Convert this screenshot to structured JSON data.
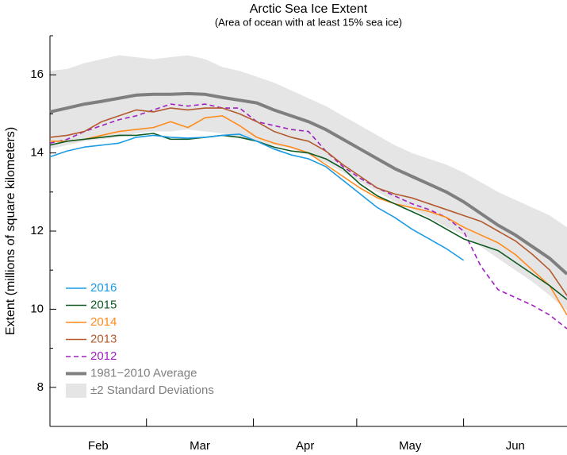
{
  "chart_data": {
    "type": "line",
    "title": "Arctic Sea Ice Extent",
    "subtitle": "(Area of ocean with at least 15% sea ice)",
    "y_label": "Extent (millions of square kilometers)",
    "xlim": [
      32,
      182
    ],
    "ylim": [
      7,
      17
    ],
    "yticks": [
      8,
      10,
      12,
      14,
      16
    ],
    "yticks_minor": [
      7,
      9,
      11,
      13,
      15,
      17
    ],
    "xtick_marks": [
      32,
      60,
      91,
      121,
      152
    ],
    "xticks": [
      {
        "value": 46,
        "label": "Feb"
      },
      {
        "value": 75.5,
        "label": "Mar"
      },
      {
        "value": 106,
        "label": "Apr"
      },
      {
        "value": 136.5,
        "label": "May"
      },
      {
        "value": 167,
        "label": "Jun"
      }
    ],
    "x": [
      32,
      37,
      42,
      47,
      52,
      57,
      62,
      67,
      72,
      77,
      82,
      87,
      92,
      97,
      102,
      107,
      112,
      117,
      122,
      127,
      132,
      137,
      142,
      147,
      152,
      157,
      162,
      167,
      172,
      177,
      182
    ],
    "band": {
      "name": "±2 Standard Deviations",
      "color": "#e5e5e5",
      "upper": [
        16.1,
        16.15,
        16.3,
        16.4,
        16.5,
        16.45,
        16.4,
        16.45,
        16.5,
        16.4,
        16.2,
        16.1,
        15.95,
        15.8,
        15.6,
        15.4,
        15.2,
        14.95,
        14.7,
        14.45,
        14.2,
        14.0,
        13.85,
        13.7,
        13.5,
        13.25,
        13.0,
        12.8,
        12.6,
        12.4,
        12.1
      ],
      "lower": [
        14.1,
        14.2,
        14.3,
        14.35,
        14.4,
        14.5,
        14.55,
        14.55,
        14.6,
        14.55,
        14.5,
        14.4,
        14.3,
        14.2,
        14.1,
        13.95,
        13.75,
        13.5,
        13.25,
        13.0,
        12.75,
        12.55,
        12.35,
        12.1,
        11.9,
        11.6,
        11.3,
        11.0,
        10.7,
        10.35,
        9.95
      ]
    },
    "series": [
      {
        "name": "2016",
        "color": "#1a9be6",
        "width": 1.6,
        "dash": false,
        "values": [
          13.9,
          14.05,
          14.15,
          14.2,
          14.25,
          14.4,
          14.45,
          14.4,
          14.38,
          14.4,
          14.45,
          14.48,
          14.3,
          14.1,
          13.95,
          13.85,
          13.65,
          13.3,
          12.95,
          12.6,
          12.35,
          12.05,
          11.8,
          11.55,
          11.25,
          null,
          null,
          null,
          null,
          null,
          null
        ]
      },
      {
        "name": "2015",
        "color": "#0d5a22",
        "width": 1.6,
        "dash": false,
        "values": [
          14.2,
          14.3,
          14.35,
          14.4,
          14.45,
          14.45,
          14.5,
          14.35,
          14.35,
          14.4,
          14.45,
          14.4,
          14.3,
          14.15,
          14.05,
          14.0,
          13.85,
          13.6,
          13.2,
          12.9,
          12.7,
          12.5,
          12.3,
          12.05,
          11.8,
          11.65,
          11.5,
          11.2,
          10.9,
          10.6,
          10.25
        ]
      },
      {
        "name": "2014",
        "color": "#ff8a1a",
        "width": 1.6,
        "dash": false,
        "values": [
          14.3,
          14.3,
          14.35,
          14.45,
          14.55,
          14.6,
          14.65,
          14.8,
          14.65,
          14.9,
          14.95,
          14.7,
          14.4,
          14.25,
          14.15,
          14.0,
          13.7,
          13.4,
          13.1,
          12.85,
          12.7,
          12.6,
          12.5,
          12.35,
          12.1,
          11.9,
          11.7,
          11.4,
          11.0,
          10.6,
          9.85
        ]
      },
      {
        "name": "2013",
        "color": "#b35a2e",
        "width": 1.6,
        "dash": false,
        "values": [
          14.4,
          14.45,
          14.55,
          14.8,
          14.95,
          15.1,
          15.05,
          15.15,
          15.1,
          15.15,
          15.15,
          15.0,
          14.8,
          14.55,
          14.4,
          14.3,
          14.05,
          13.7,
          13.4,
          13.1,
          12.95,
          12.85,
          12.7,
          12.55,
          12.4,
          12.25,
          12.0,
          11.75,
          11.4,
          11.0,
          10.35
        ]
      },
      {
        "name": "2012",
        "color": "#a020c0",
        "width": 1.6,
        "dash": true,
        "values": [
          14.25,
          14.35,
          14.55,
          14.7,
          14.85,
          14.95,
          15.1,
          15.25,
          15.2,
          15.25,
          15.15,
          15.15,
          14.8,
          14.7,
          14.6,
          14.55,
          14.05,
          13.65,
          13.35,
          13.1,
          12.9,
          12.7,
          12.55,
          12.35,
          12.0,
          11.1,
          10.5,
          10.3,
          10.1,
          9.85,
          9.5
        ]
      },
      {
        "name": "1981−2010 Average",
        "color": "#7f7f7f",
        "width": 4,
        "dash": false,
        "values": [
          15.05,
          15.15,
          15.25,
          15.32,
          15.4,
          15.48,
          15.5,
          15.5,
          15.52,
          15.5,
          15.42,
          15.35,
          15.28,
          15.1,
          14.95,
          14.8,
          14.6,
          14.35,
          14.1,
          13.85,
          13.6,
          13.4,
          13.2,
          13.0,
          12.75,
          12.45,
          12.15,
          11.9,
          11.6,
          11.3,
          10.9
        ]
      }
    ]
  }
}
